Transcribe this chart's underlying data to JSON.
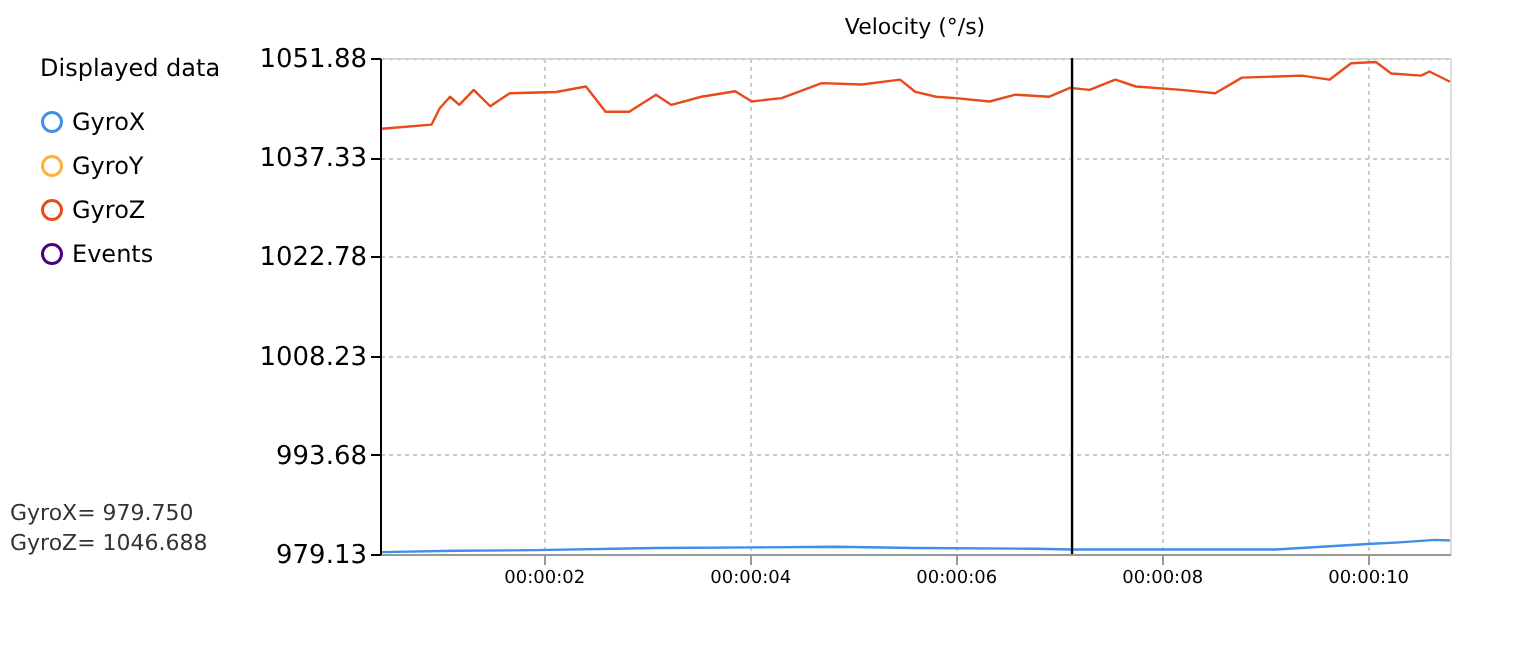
{
  "chart_data": {
    "type": "line",
    "title": "Velocity (°/s)",
    "legend_title": "Displayed data",
    "legend": "left",
    "grid": true,
    "marker": "none",
    "line_style": "solid",
    "xlim": [
      0.41,
      10.8
    ],
    "xticks": [
      {
        "value": 2,
        "label": "00:00:02"
      },
      {
        "value": 4,
        "label": "00:00:04"
      },
      {
        "value": 6,
        "label": "00:00:06"
      },
      {
        "value": 8,
        "label": "00:00:08"
      },
      {
        "value": 10,
        "label": "00:00:10"
      }
    ],
    "ylim": [
      979.13,
      1051.88
    ],
    "yticks": [
      979.13,
      993.68,
      1008.23,
      1022.78,
      1037.33,
      1051.88
    ],
    "series": [
      {
        "name": "GyroX",
        "color": "#3f8ee8",
        "x": [
          0.43,
          1.15,
          1.92,
          3.09,
          4.06,
          4.83,
          5.61,
          6.78,
          7.13,
          7.94,
          9.11,
          10.0,
          10.27,
          10.66,
          10.8
        ],
        "values": [
          979.4,
          979.6,
          979.7,
          980.0,
          980.1,
          980.2,
          980.0,
          979.9,
          979.8,
          979.8,
          979.8,
          980.6,
          980.8,
          981.2,
          981.1
        ]
      },
      {
        "name": "GyroY",
        "color": "#ffb03b"
      },
      {
        "name": "GyroZ",
        "color": "#e84a1a",
        "x": [
          0.43,
          0.91,
          0.99,
          1.09,
          1.18,
          1.32,
          1.48,
          1.67,
          2.12,
          2.41,
          2.6,
          2.83,
          3.09,
          3.24,
          3.53,
          3.86,
          4.02,
          4.31,
          4.7,
          5.09,
          5.46,
          5.61,
          5.81,
          6.0,
          6.33,
          6.58,
          6.91,
          7.11,
          7.3,
          7.55,
          7.75,
          8.19,
          8.52,
          8.78,
          9.36,
          9.63,
          9.84,
          10.08,
          10.23,
          10.52,
          10.6,
          10.8
        ],
        "values": [
          1041.5,
          1042.1,
          1044.5,
          1046.2,
          1045.0,
          1047.2,
          1044.8,
          1046.7,
          1046.9,
          1047.7,
          1044.0,
          1044.0,
          1046.5,
          1045.0,
          1046.2,
          1047.0,
          1045.5,
          1046.0,
          1048.2,
          1048.0,
          1048.7,
          1046.9,
          1046.2,
          1046.0,
          1045.5,
          1046.5,
          1046.2,
          1047.5,
          1047.2,
          1048.7,
          1047.7,
          1047.2,
          1046.7,
          1049.0,
          1049.3,
          1048.7,
          1051.1,
          1051.3,
          1049.6,
          1049.3,
          1049.9,
          1048.4
        ]
      },
      {
        "name": "Events",
        "color": "#4b0082"
      }
    ],
    "ref_lines": [
      {
        "axis": "x",
        "value": 7.13,
        "color": "#000000",
        "line_style": "solid"
      }
    ],
    "annotations": [
      "GyroX= 979.750",
      "GyroZ= 1046.688"
    ]
  }
}
